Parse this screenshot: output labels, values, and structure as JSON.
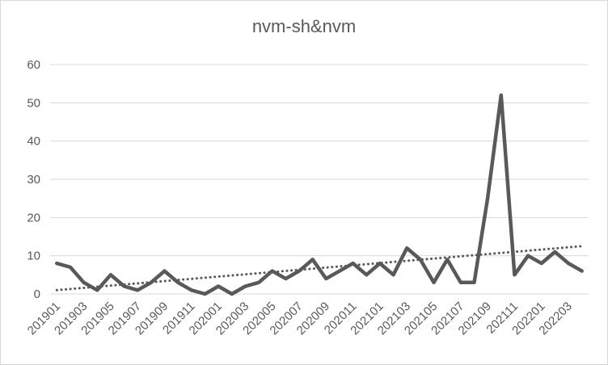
{
  "chart_data": {
    "type": "line",
    "title": "nvm-sh&nvm",
    "xlabel": "",
    "ylabel": "",
    "ylim": [
      0,
      60
    ],
    "yticks": [
      0,
      10,
      20,
      30,
      40,
      50,
      60
    ],
    "grid": true,
    "legend": "none",
    "x": [
      "201901",
      "201902",
      "201903",
      "201904",
      "201905",
      "201906",
      "201907",
      "201908",
      "201909",
      "201910",
      "201911",
      "201912",
      "202001",
      "202002",
      "202003",
      "202004",
      "202005",
      "202006",
      "202007",
      "202008",
      "202009",
      "202010",
      "202011",
      "202012",
      "202101",
      "202102",
      "202103",
      "202104",
      "202105",
      "202106",
      "202107",
      "202108",
      "202109",
      "202110",
      "202111",
      "202112",
      "202201",
      "202202",
      "202203",
      "202204"
    ],
    "xtick_labels": [
      "201901",
      "201903",
      "201905",
      "201907",
      "201909",
      "201911",
      "202001",
      "202003",
      "202005",
      "202007",
      "202009",
      "202011",
      "202101",
      "202103",
      "202105",
      "202107",
      "202109",
      "202111",
      "202201",
      "202203"
    ],
    "series": [
      {
        "values": [
          8,
          7,
          3,
          1,
          5,
          2,
          1,
          3,
          6,
          3,
          1,
          0,
          2,
          0,
          2,
          3,
          6,
          4,
          6,
          9,
          4,
          6,
          8,
          5,
          8,
          5,
          12,
          9,
          3,
          9,
          3,
          3,
          25,
          52,
          5,
          10,
          8,
          11,
          8,
          6
        ],
        "color": "#595959"
      }
    ],
    "trendline": {
      "style": "dotted",
      "color": "#595959",
      "start": 1.0,
      "end": 12.5
    }
  }
}
